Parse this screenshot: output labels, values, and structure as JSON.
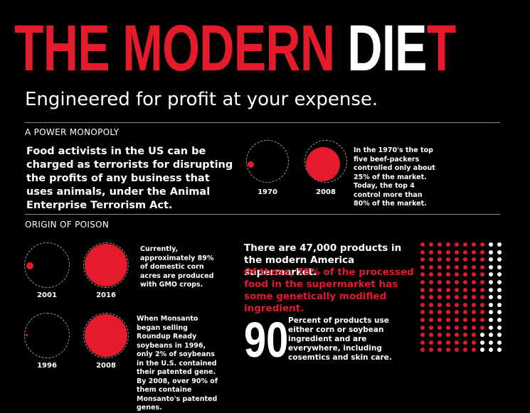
{
  "header": {
    "title_red": "THE MODERN ",
    "title_mid": "DIE",
    "title_end": "T",
    "subtitle": "Engineered for profit at your expense."
  },
  "section1": {
    "label": "A POWER MONOPOLY",
    "lead": "Food activists in the US can be charged as terrorists for disrupting the profits of any business that uses animals, under the Animal Enterprise Terrorism Act.",
    "years": [
      "1970",
      "2008"
    ],
    "caption": "In the 1970's the top five beef-packers controlled only about 25% of the market. Today, the top 4 control more than 80% of the market."
  },
  "section2": {
    "label": "ORIGIN OF POISON",
    "corn": {
      "years": [
        "2001",
        "2016"
      ],
      "caption": "Currently, approximately 89% of domestic corn acres are produced with GMO crops."
    },
    "soy": {
      "years": [
        "1996",
        "2008"
      ],
      "caption": "When Monsanto began selling Roundup Ready soybeans in 1996, only 2% of soybeans in the U.S. contained their patented gene. By 2008, over 90% of them containe Monsanto's patented genes."
    },
    "products_white": "There are 47,000 products in the modern America supermarket.",
    "products_red": "Of those, 78% of the processed food in the supermarket has some genetically modified ingredient.",
    "big_number": "90",
    "big_number_caption": "Percent of products use either corn or soybean ingredient and are everywhere, including cosemtics and skin care."
  },
  "colors": {
    "accent": "#e31b2b",
    "background": "#000000",
    "text": "#ffffff"
  },
  "dot_grid": {
    "rows": 15,
    "cols": 10,
    "red_percent": 78
  }
}
